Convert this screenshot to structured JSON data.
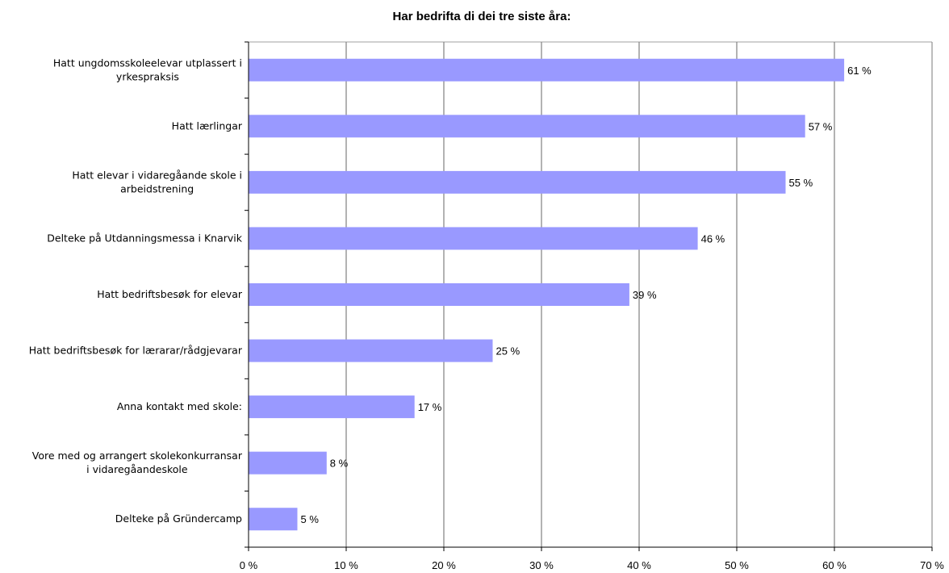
{
  "chart_data": {
    "type": "bar",
    "orientation": "horizontal",
    "title": "Har bedrifta di dei tre siste åra:",
    "xlabel": "",
    "ylabel": "",
    "categories": [
      [
        "Hatt ungdomsskoleelevar utplassert i",
        "yrkespraksis"
      ],
      [
        "Hatt lærlingar"
      ],
      [
        "Hatt elevar i vidaregåande skole  i",
        "arbeidstrening"
      ],
      [
        "Delteke på Utdanningsmessa i Knarvik"
      ],
      [
        "Hatt bedriftsbesøk for elevar"
      ],
      [
        "Hatt bedriftsbesøk for lærarar/rådgjevarar"
      ],
      [
        "Anna kontakt med skole:"
      ],
      [
        "Vore med og arrangert skolekonkurransar",
        "i vidaregåandeskole"
      ],
      [
        "Delteke på Gründercamp"
      ]
    ],
    "values": [
      61,
      57,
      55,
      46,
      39,
      25,
      17,
      8,
      5
    ],
    "value_labels": [
      "61 %",
      "57 %",
      "55 %",
      "46 %",
      "39 %",
      "25 %",
      "17 %",
      "8 %",
      "5 %"
    ],
    "xlim": [
      0,
      70
    ],
    "xticks": [
      0,
      10,
      20,
      30,
      40,
      50,
      60,
      70
    ],
    "xtick_labels": [
      "0 %",
      "10 %",
      "20 %",
      "30 %",
      "40 %",
      "50 %",
      "60 %",
      "70 %"
    ],
    "grid": true,
    "legend": "none",
    "bar_color": "#9999ff",
    "grid_color": "#000000"
  }
}
